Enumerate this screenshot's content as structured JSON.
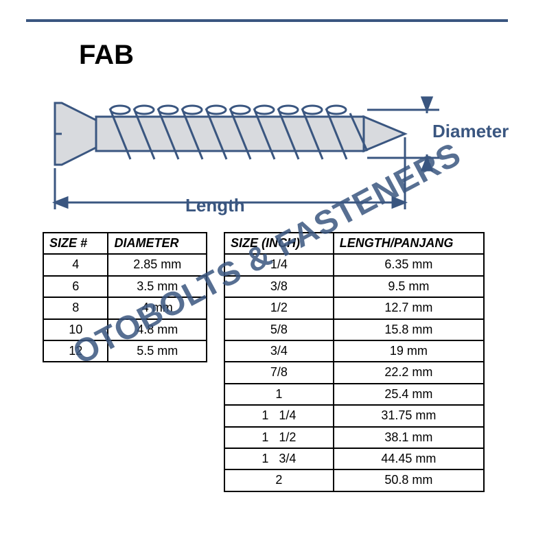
{
  "header": {
    "title": "FAB"
  },
  "diagram": {
    "length_label": "Length",
    "diameter_label": "Diameter",
    "stroke_color": "#3a5680",
    "fill_color": "#d8dade"
  },
  "watermark": {
    "text": "OTOBOLTS & FASTENERS",
    "color": "#3a5680"
  },
  "size_table": {
    "headers": [
      "SIZE #",
      "DIAMETER"
    ],
    "rows": [
      [
        "4",
        "2.85 mm"
      ],
      [
        "6",
        "3.5 mm"
      ],
      [
        "8",
        "4 mm"
      ],
      [
        "10",
        "4.8 mm"
      ],
      [
        "12",
        "5.5 mm"
      ]
    ]
  },
  "length_table": {
    "headers": [
      "SIZE (INCH)",
      "LENGTH/PANJANG"
    ],
    "rows": [
      [
        "1/4",
        "6.35 mm"
      ],
      [
        "3/8",
        "9.5 mm"
      ],
      [
        "1/2",
        "12.7 mm"
      ],
      [
        "5/8",
        "15.8 mm"
      ],
      [
        "3/4",
        "19 mm"
      ],
      [
        "7/8",
        "22.2 mm"
      ],
      [
        "1",
        "25.4 mm"
      ],
      [
        "1   1/4",
        "31.75 mm"
      ],
      [
        "1   1/2",
        "38.1 mm"
      ],
      [
        "1   3/4",
        "44.45 mm"
      ],
      [
        "2",
        "50.8 mm"
      ]
    ]
  }
}
